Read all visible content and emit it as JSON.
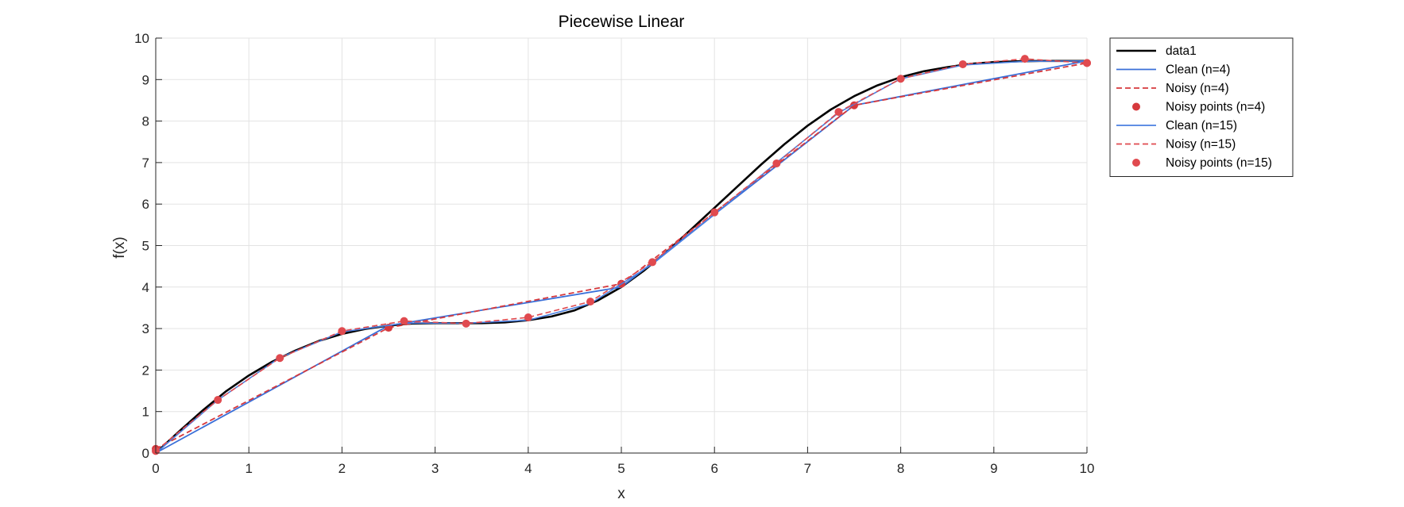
{
  "chart_data": {
    "type": "line",
    "title": "Piecewise Linear",
    "xlabel": "x",
    "ylabel": "f(x)",
    "xlim": [
      0,
      10
    ],
    "ylim": [
      0,
      10
    ],
    "xticks": [
      0,
      1,
      2,
      3,
      4,
      5,
      6,
      7,
      8,
      9,
      10
    ],
    "yticks": [
      0,
      1,
      2,
      3,
      4,
      5,
      6,
      7,
      8,
      9,
      10
    ],
    "grid": true,
    "legend_position": "outside-right",
    "series": [
      {
        "name": "data1",
        "kind": "line",
        "color": "#000000",
        "dash": "solid",
        "x": [
          0,
          0.25,
          0.5,
          0.75,
          1,
          1.25,
          1.5,
          1.75,
          2,
          2.25,
          2.5,
          2.75,
          3,
          3.25,
          3.5,
          3.75,
          4,
          4.25,
          4.5,
          4.75,
          5,
          5.25,
          5.5,
          5.75,
          6,
          6.25,
          6.5,
          6.75,
          7,
          7.25,
          7.5,
          7.75,
          8,
          8.25,
          8.5,
          8.75,
          9,
          9.25,
          9.5,
          9.75,
          10
        ],
        "y": [
          0,
          0.52,
          1.02,
          1.48,
          1.87,
          2.2,
          2.47,
          2.7,
          2.87,
          2.99,
          3.07,
          3.12,
          3.13,
          3.13,
          3.13,
          3.15,
          3.2,
          3.29,
          3.44,
          3.68,
          4.0,
          4.41,
          4.88,
          5.39,
          5.91,
          6.43,
          6.95,
          7.44,
          7.89,
          8.28,
          8.6,
          8.86,
          9.06,
          9.2,
          9.3,
          9.38,
          9.42,
          9.44,
          9.45,
          9.45,
          9.45
        ]
      },
      {
        "name": "Clean (n=4)",
        "kind": "line",
        "color": "#3a6fd8",
        "dash": "solid",
        "x": [
          0,
          2.5,
          5,
          7.5,
          10
        ],
        "y": [
          0,
          3.07,
          4.0,
          8.38,
          9.45
        ]
      },
      {
        "name": "Noisy (n=4)",
        "kind": "line",
        "color": "#d6393d",
        "dash": "dashed",
        "x": [
          0,
          2.5,
          5,
          7.5,
          10
        ],
        "y": [
          0.1,
          3.02,
          4.08,
          8.38,
          9.4
        ]
      },
      {
        "name": "Noisy points (n=4)",
        "kind": "points",
        "color": "#d6393d",
        "x": [
          0,
          2.5,
          5,
          7.5,
          10
        ],
        "y": [
          0.1,
          3.02,
          4.08,
          8.38,
          9.4
        ]
      },
      {
        "name": "Clean (n=15)",
        "kind": "line",
        "color": "#4a7fe0",
        "dash": "solid",
        "x": [
          0,
          0.667,
          1.333,
          2,
          2.667,
          3.333,
          4,
          4.667,
          5.333,
          6,
          6.667,
          7.333,
          8,
          8.667,
          9.333,
          10
        ],
        "y": [
          0,
          1.28,
          2.3,
          2.92,
          3.13,
          3.13,
          3.2,
          3.6,
          4.55,
          5.75,
          7.0,
          8.2,
          9.02,
          9.35,
          9.44,
          9.45
        ]
      },
      {
        "name": "Noisy (n=15)",
        "kind": "line",
        "color": "#e04a4f",
        "dash": "dashed",
        "x": [
          0,
          0.667,
          1.333,
          2,
          2.667,
          3.333,
          4,
          4.667,
          5.333,
          6,
          6.667,
          7.333,
          8,
          8.667,
          9.333,
          10
        ],
        "y": [
          0.05,
          1.28,
          2.29,
          2.94,
          3.18,
          3.12,
          3.27,
          3.65,
          4.6,
          5.8,
          6.98,
          8.22,
          9.02,
          9.37,
          9.5,
          9.4
        ]
      },
      {
        "name": "Noisy points (n=15)",
        "kind": "points",
        "color": "#e04a4f",
        "x": [
          0,
          0.667,
          1.333,
          2,
          2.667,
          3.333,
          4,
          4.667,
          5.333,
          6,
          6.667,
          7.333,
          8,
          8.667,
          9.333,
          10
        ],
        "y": [
          0.05,
          1.28,
          2.29,
          2.94,
          3.18,
          3.12,
          3.27,
          3.65,
          4.6,
          5.8,
          6.98,
          8.22,
          9.02,
          9.37,
          9.5,
          9.4
        ]
      }
    ]
  }
}
